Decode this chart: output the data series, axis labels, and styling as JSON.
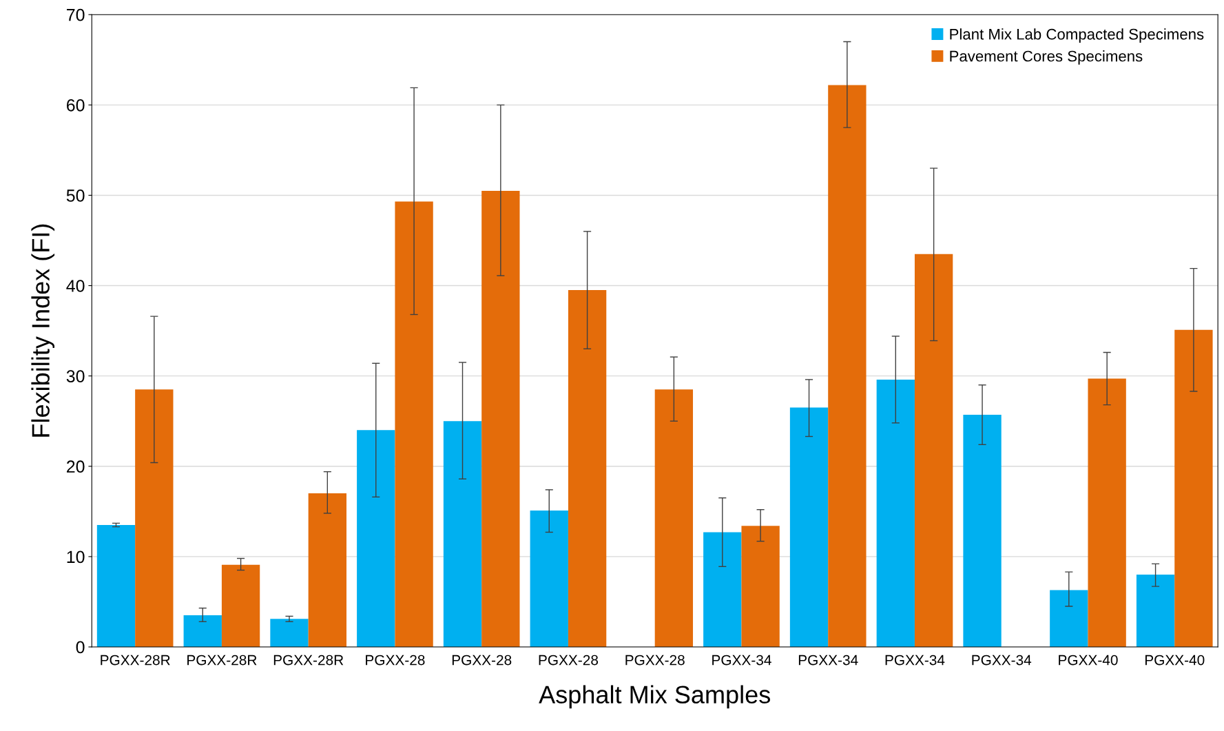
{
  "chart_data": {
    "type": "bar",
    "xlabel": "Asphalt Mix Samples",
    "ylabel": "Flexibility Index (FI)",
    "categories": [
      "PGXX-28R",
      "PGXX-28R",
      "PGXX-28R",
      "PGXX-28",
      "PGXX-28",
      "PGXX-28",
      "PGXX-28",
      "PGXX-34",
      "PGXX-34",
      "PGXX-34",
      "PGXX-34",
      "PGXX-40",
      "PGXX-40"
    ],
    "series": [
      {
        "name": "Plant Mix Lab Compacted Specimens",
        "color": "#00b0f0",
        "values": [
          13.5,
          3.5,
          3.1,
          24.0,
          25.0,
          15.1,
          null,
          12.7,
          26.5,
          29.6,
          25.7,
          6.3,
          8.0
        ],
        "errors": [
          [
            13.3,
            13.7
          ],
          [
            2.8,
            4.3
          ],
          [
            2.8,
            3.4
          ],
          [
            16.6,
            31.4
          ],
          [
            18.6,
            31.5
          ],
          [
            12.7,
            17.4
          ],
          null,
          [
            8.9,
            16.5
          ],
          [
            23.3,
            29.6
          ],
          [
            24.8,
            34.4
          ],
          [
            22.4,
            29.0
          ],
          [
            4.5,
            8.3
          ],
          [
            6.7,
            9.2
          ]
        ]
      },
      {
        "name": "Pavement Cores Specimens",
        "color": "#e46c0a",
        "values": [
          28.5,
          9.1,
          17.0,
          49.3,
          50.5,
          39.5,
          28.5,
          13.4,
          62.2,
          43.5,
          null,
          29.7,
          35.1
        ],
        "errors": [
          [
            20.4,
            36.6
          ],
          [
            8.5,
            9.8
          ],
          [
            14.8,
            19.4
          ],
          [
            36.8,
            61.9
          ],
          [
            41.1,
            60.0
          ],
          [
            33.0,
            46.0
          ],
          [
            25.0,
            32.1
          ],
          [
            11.7,
            15.2
          ],
          [
            57.5,
            67.0
          ],
          [
            33.9,
            53.0
          ],
          null,
          [
            26.8,
            32.6
          ],
          [
            28.3,
            41.9
          ]
        ]
      }
    ],
    "ylim": [
      0,
      70
    ],
    "yticks": [
      0,
      10,
      20,
      30,
      40,
      50,
      60,
      70
    ],
    "grid": "y",
    "legend": "top right"
  }
}
